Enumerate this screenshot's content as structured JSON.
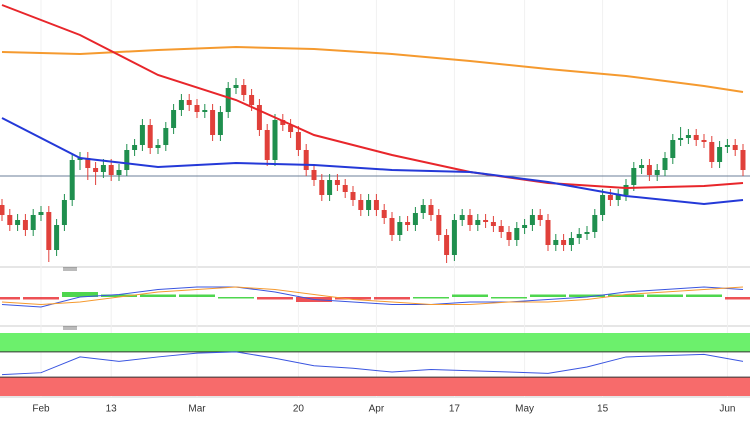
{
  "chart_data": {
    "type": "candlestick",
    "categories": [
      null,
      null,
      null,
      null,
      null,
      "Feb",
      null,
      null,
      null,
      null,
      null,
      null,
      null,
      null,
      "13",
      null,
      null,
      null,
      null,
      null,
      null,
      null,
      null,
      null,
      null,
      "Mar",
      null,
      null,
      null,
      null,
      null,
      null,
      null,
      null,
      null,
      null,
      null,
      null,
      "20",
      null,
      null,
      null,
      null,
      null,
      null,
      null,
      null,
      null,
      "Apr",
      null,
      null,
      null,
      null,
      null,
      null,
      null,
      null,
      null,
      "17",
      null,
      null,
      null,
      null,
      null,
      null,
      null,
      null,
      "May",
      null,
      null,
      null,
      null,
      null,
      null,
      null,
      null,
      null,
      "15",
      null,
      null,
      null,
      null,
      null,
      null,
      null,
      null,
      null,
      null,
      null,
      null,
      null,
      null,
      null,
      "Jun",
      null,
      null
    ],
    "ohlc": [
      [
        60,
        66,
        44,
        50
      ],
      [
        50,
        56,
        34,
        40
      ],
      [
        40,
        51,
        34,
        45
      ],
      [
        45,
        51,
        29,
        35
      ],
      [
        35,
        56,
        29,
        50
      ],
      [
        50,
        59,
        44,
        53
      ],
      [
        53,
        59,
        3,
        15
      ],
      [
        15,
        46,
        9,
        40
      ],
      [
        40,
        71,
        34,
        65
      ],
      [
        65,
        111,
        59,
        105
      ],
      [
        105,
        113,
        95,
        107
      ],
      [
        107,
        113,
        85,
        97
      ],
      [
        97,
        103,
        80,
        93
      ],
      [
        93,
        106,
        87,
        100
      ],
      [
        100,
        106,
        84,
        90
      ],
      [
        90,
        101,
        84,
        95
      ],
      [
        95,
        121,
        89,
        115
      ],
      [
        115,
        126,
        109,
        120
      ],
      [
        120,
        146,
        114,
        140
      ],
      [
        140,
        146,
        111,
        117
      ],
      [
        117,
        126,
        111,
        120
      ],
      [
        120,
        143,
        114,
        137
      ],
      [
        137,
        161,
        131,
        155
      ],
      [
        155,
        171,
        149,
        165
      ],
      [
        165,
        171,
        154,
        160
      ],
      [
        160,
        166,
        147,
        153
      ],
      [
        153,
        161,
        147,
        155
      ],
      [
        155,
        161,
        124,
        130
      ],
      [
        130,
        159,
        124,
        153
      ],
      [
        153,
        183,
        147,
        177
      ],
      [
        177,
        187,
        171,
        180
      ],
      [
        180,
        186,
        164,
        170
      ],
      [
        170,
        176,
        154,
        160
      ],
      [
        160,
        166,
        129,
        135
      ],
      [
        135,
        141,
        99,
        105
      ],
      [
        105,
        151,
        99,
        145
      ],
      [
        145,
        151,
        134,
        140
      ],
      [
        140,
        146,
        127,
        133
      ],
      [
        133,
        139,
        109,
        115
      ],
      [
        115,
        121,
        89,
        95
      ],
      [
        95,
        101,
        79,
        85
      ],
      [
        85,
        91,
        64,
        70
      ],
      [
        70,
        91,
        64,
        85
      ],
      [
        85,
        91,
        74,
        80
      ],
      [
        80,
        86,
        67,
        73
      ],
      [
        73,
        79,
        59,
        65
      ],
      [
        65,
        71,
        49,
        55
      ],
      [
        55,
        71,
        49,
        65
      ],
      [
        65,
        71,
        49,
        55
      ],
      [
        55,
        61,
        41,
        47
      ],
      [
        47,
        53,
        24,
        30
      ],
      [
        30,
        49,
        24,
        43
      ],
      [
        43,
        49,
        34,
        40
      ],
      [
        40,
        58,
        34,
        52
      ],
      [
        52,
        66,
        46,
        60
      ],
      [
        60,
        66,
        44,
        50
      ],
      [
        50,
        56,
        24,
        30
      ],
      [
        30,
        36,
        2,
        10
      ],
      [
        10,
        51,
        4,
        45
      ],
      [
        45,
        56,
        39,
        50
      ],
      [
        50,
        56,
        34,
        40
      ],
      [
        40,
        51,
        34,
        45
      ],
      [
        45,
        51,
        37,
        43
      ],
      [
        43,
        49,
        33,
        39
      ],
      [
        39,
        45,
        27,
        33
      ],
      [
        33,
        39,
        19,
        25
      ],
      [
        25,
        43,
        19,
        37
      ],
      [
        37,
        46,
        31,
        40
      ],
      [
        40,
        56,
        34,
        50
      ],
      [
        50,
        56,
        39,
        45
      ],
      [
        45,
        51,
        14,
        20
      ],
      [
        20,
        31,
        14,
        25
      ],
      [
        25,
        31,
        14,
        20
      ],
      [
        20,
        33,
        14,
        27
      ],
      [
        27,
        37,
        21,
        31
      ],
      [
        31,
        39,
        25,
        33
      ],
      [
        33,
        56,
        27,
        50
      ],
      [
        50,
        76,
        44,
        70
      ],
      [
        70,
        76,
        59,
        65
      ],
      [
        65,
        76,
        59,
        70
      ],
      [
        70,
        86,
        64,
        80
      ],
      [
        80,
        103,
        74,
        97
      ],
      [
        97,
        106,
        91,
        100
      ],
      [
        100,
        106,
        84,
        90
      ],
      [
        90,
        101,
        84,
        95
      ],
      [
        95,
        113,
        89,
        107
      ],
      [
        107,
        131,
        101,
        125
      ],
      [
        125,
        138,
        119,
        127
      ],
      [
        127,
        136,
        121,
        130
      ],
      [
        130,
        136,
        119,
        125
      ],
      [
        125,
        131,
        117,
        123
      ],
      [
        123,
        129,
        97,
        103
      ],
      [
        103,
        124,
        97,
        118
      ],
      [
        118,
        126,
        112,
        120
      ],
      [
        120,
        126,
        109,
        115
      ],
      [
        115,
        121,
        89,
        95
      ]
    ],
    "up_color": "#1f8f4e",
    "down_color": "#e0403a",
    "ylim": [
      0,
      265
    ],
    "hline": 89,
    "hline_color": "#6b7f99",
    "overlays": {
      "x": [
        0,
        10,
        20,
        30,
        40,
        50,
        60,
        70,
        80,
        90,
        95
      ],
      "series": [
        {
          "color": "#f59a2f",
          "values": [
            213,
            211,
            215,
            218,
            216,
            211,
            204,
            196,
            189,
            179,
            173
          ]
        },
        {
          "color": "#e8262b",
          "values": [
            260,
            230,
            190,
            165,
            130,
            110,
            93,
            82,
            77,
            79,
            82
          ]
        },
        {
          "color": "#2439d8",
          "values": [
            147,
            107,
            98,
            102,
            100,
            95,
            93,
            83,
            69,
            61,
            65
          ]
        }
      ]
    },
    "macd": {
      "x": [
        0,
        5,
        10,
        15,
        20,
        25,
        30,
        35,
        40,
        45,
        50,
        55,
        60,
        65,
        70,
        75,
        80,
        85,
        90,
        95
      ],
      "ylim": [
        -10,
        10
      ],
      "macd": {
        "color": "#3a55e0",
        "values": [
          -3,
          -4,
          0,
          1,
          3,
          4,
          4,
          2,
          -1,
          -2,
          -3,
          -3,
          -2,
          -2,
          -1,
          0,
          2,
          3,
          4,
          3
        ]
      },
      "signal": {
        "color": "#f59a2f",
        "values": [
          -2,
          -3,
          -2,
          0,
          2,
          3,
          4,
          3,
          1,
          -1,
          -2,
          -3,
          -3,
          -2,
          -2,
          -1,
          1,
          2,
          3,
          4
        ]
      },
      "hist": {
        "up_color": "#22cc22",
        "down_color": "#e8262b",
        "values": [
          -1,
          -1,
          2,
          1,
          1,
          1,
          0,
          -1,
          -2,
          -1,
          -1,
          0,
          1,
          0,
          1,
          1,
          1,
          1,
          1,
          -1
        ]
      }
    },
    "rsi": {
      "x": [
        0,
        5,
        10,
        15,
        20,
        25,
        30,
        35,
        40,
        45,
        50,
        55,
        60,
        65,
        70,
        75,
        80,
        85,
        90,
        95
      ],
      "ylim": [
        0,
        100
      ],
      "bands": [
        70,
        30
      ],
      "upper_color": "#6cf06c",
      "lower_color": "#f76b6b",
      "color": "#3a55e0",
      "values": [
        34,
        37,
        62,
        55,
        62,
        68,
        70,
        60,
        48,
        44,
        38,
        42,
        40,
        38,
        36,
        46,
        62,
        64,
        66,
        55
      ]
    }
  }
}
